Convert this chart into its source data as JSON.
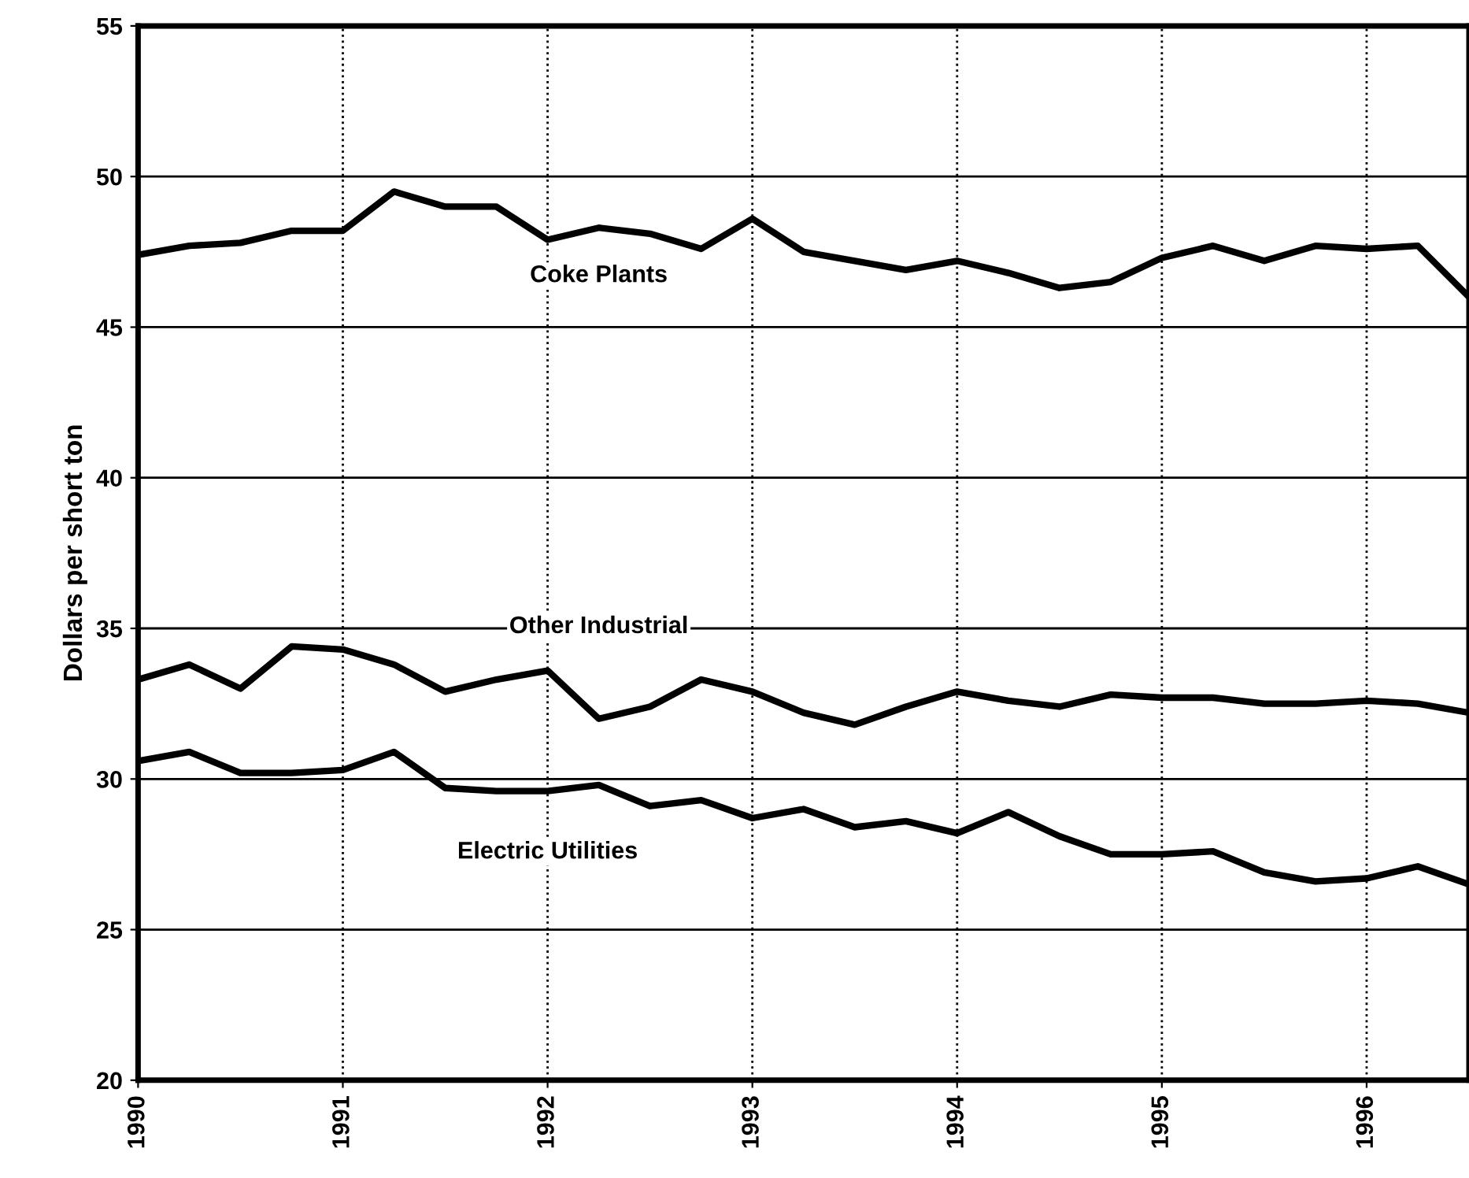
{
  "chart_data": {
    "type": "line",
    "ylabel": "Dollars per short ton",
    "x": [
      1990,
      1990.25,
      1990.5,
      1990.75,
      1991,
      1991.25,
      1991.5,
      1991.75,
      1992,
      1992.25,
      1992.5,
      1992.75,
      1993,
      1993.25,
      1993.5,
      1993.75,
      1994,
      1994.25,
      1994.5,
      1994.75,
      1995,
      1995.25,
      1995.5,
      1995.75,
      1996,
      1996.25,
      1996.5
    ],
    "series": [
      {
        "name": "Coke Plants",
        "color": "#000000",
        "values": [
          47.4,
          47.7,
          47.8,
          48.2,
          48.2,
          49.5,
          49.0,
          49.0,
          47.9,
          48.3,
          48.1,
          47.6,
          48.6,
          47.5,
          47.2,
          46.9,
          47.2,
          46.8,
          46.3,
          46.5,
          47.3,
          47.7,
          47.2,
          47.7,
          47.6,
          47.7,
          46.0
        ]
      },
      {
        "name": "Other Industrial",
        "color": "#000000",
        "values": [
          33.3,
          33.8,
          33.0,
          34.4,
          34.3,
          33.8,
          32.9,
          33.3,
          33.6,
          32.0,
          32.4,
          33.3,
          32.9,
          32.2,
          31.8,
          32.4,
          32.9,
          32.6,
          32.4,
          32.8,
          32.7,
          32.7,
          32.5,
          32.5,
          32.6,
          32.5,
          32.2
        ]
      },
      {
        "name": "Electric Utilities",
        "color": "#000000",
        "values": [
          30.6,
          30.9,
          30.2,
          30.2,
          30.3,
          30.9,
          29.7,
          29.6,
          29.6,
          29.8,
          29.1,
          29.3,
          28.7,
          29.0,
          28.4,
          28.6,
          28.2,
          28.9,
          28.1,
          27.5,
          27.5,
          27.6,
          26.9,
          26.6,
          26.7,
          27.1,
          26.5
        ]
      }
    ],
    "xlim": [
      1990,
      1996.5
    ],
    "ylim": [
      20,
      55
    ],
    "xticks": [
      {
        "value": 1990,
        "label": "1990"
      },
      {
        "value": 1991,
        "label": "1991"
      },
      {
        "value": 1992,
        "label": "1992"
      },
      {
        "value": 1993,
        "label": "1993"
      },
      {
        "value": 1994,
        "label": "1994"
      },
      {
        "value": 1995,
        "label": "1995"
      },
      {
        "value": 1996,
        "label": "1996"
      }
    ],
    "yticks": [
      20,
      25,
      30,
      35,
      40,
      45,
      50,
      55
    ],
    "grid": true,
    "line_style": "solid",
    "marker": "none"
  }
}
